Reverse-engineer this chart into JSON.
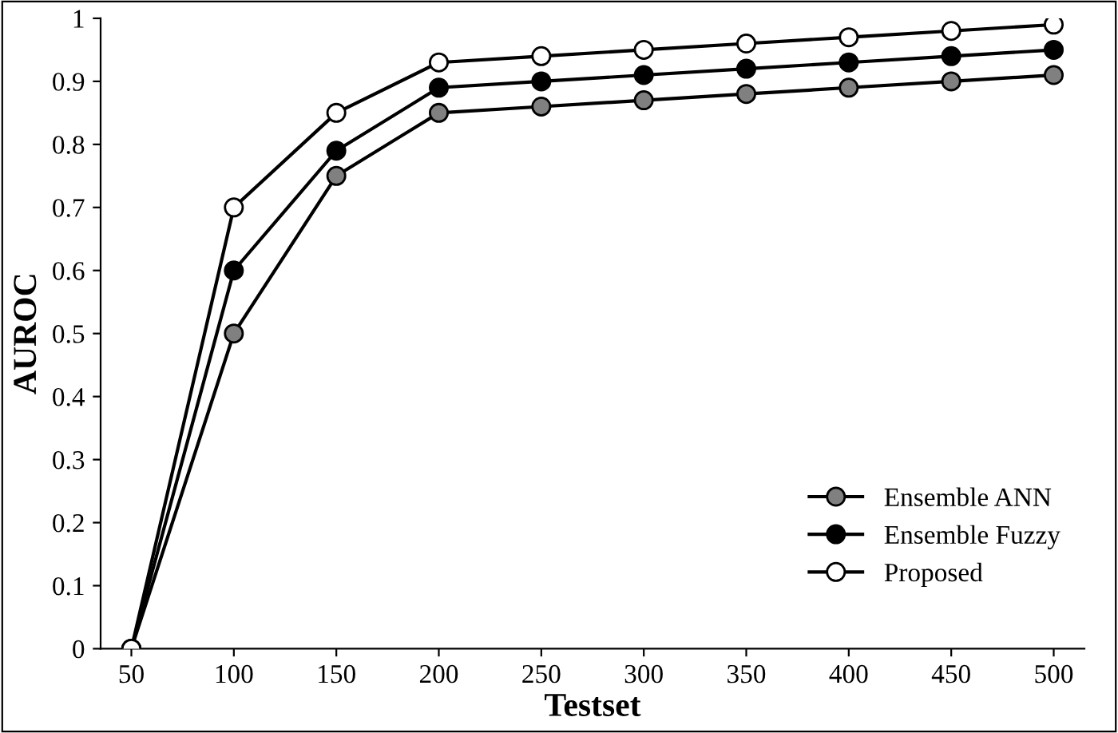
{
  "chart_data": {
    "type": "line",
    "xlabel": "Testset",
    "ylabel": "AUROC",
    "categories": [
      "50",
      "100",
      "150",
      "200",
      "250",
      "300",
      "350",
      "400",
      "450",
      "500"
    ],
    "series": [
      {
        "name": "Ensemble ANN",
        "color": "#808080",
        "values": [
          0,
          0.5,
          0.75,
          0.85,
          0.86,
          0.87,
          0.88,
          0.89,
          0.9,
          0.91
        ]
      },
      {
        "name": "Ensemble Fuzzy",
        "color": "#000000",
        "values": [
          0,
          0.6,
          0.79,
          0.89,
          0.9,
          0.91,
          0.92,
          0.93,
          0.94,
          0.95
        ]
      },
      {
        "name": "Proposed",
        "color": "#ffffff",
        "values": [
          0,
          0.7,
          0.85,
          0.93,
          0.94,
          0.95,
          0.96,
          0.97,
          0.98,
          0.99
        ]
      }
    ],
    "ylim": [
      0,
      1
    ],
    "yticks": [
      0,
      0.1,
      0.2,
      0.3,
      0.4,
      0.5,
      0.6,
      0.7,
      0.8,
      0.9,
      1
    ],
    "grid": false,
    "legend": "bottom right",
    "marker": "circle",
    "line_style": "solid"
  }
}
